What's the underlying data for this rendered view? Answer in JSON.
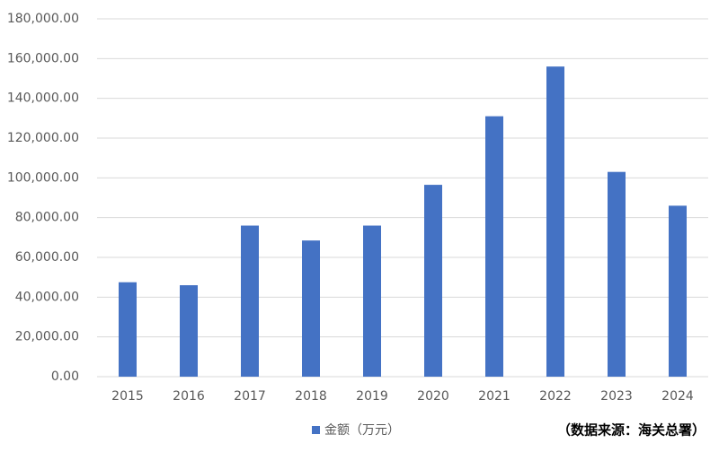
{
  "chart_data": {
    "type": "bar",
    "categories": [
      "2015",
      "2016",
      "2017",
      "2018",
      "2019",
      "2020",
      "2021",
      "2022",
      "2023",
      "2024"
    ],
    "series": [
      {
        "name": "金额（万元）",
        "color": "#4472c4",
        "values": [
          47500,
          46000,
          76000,
          68500,
          76000,
          96500,
          131000,
          156000,
          103000,
          86000
        ]
      }
    ],
    "ylim": [
      0,
      180000
    ],
    "yticks": [
      {
        "value": 0,
        "label": "0.00"
      },
      {
        "value": 20000,
        "label": "20,000.00"
      },
      {
        "value": 40000,
        "label": "40,000.00"
      },
      {
        "value": 60000,
        "label": "60,000.00"
      },
      {
        "value": 80000,
        "label": "80,000.00"
      },
      {
        "value": 100000,
        "label": "100,000.00"
      },
      {
        "value": 120000,
        "label": "120,000.00"
      },
      {
        "value": 140000,
        "label": "140,000.00"
      },
      {
        "value": 160000,
        "label": "160,000.00"
      },
      {
        "value": 180000,
        "label": "180,000.00"
      }
    ],
    "grid": true,
    "legend": "bottom",
    "annotation": "（数据来源：海关总署）"
  }
}
